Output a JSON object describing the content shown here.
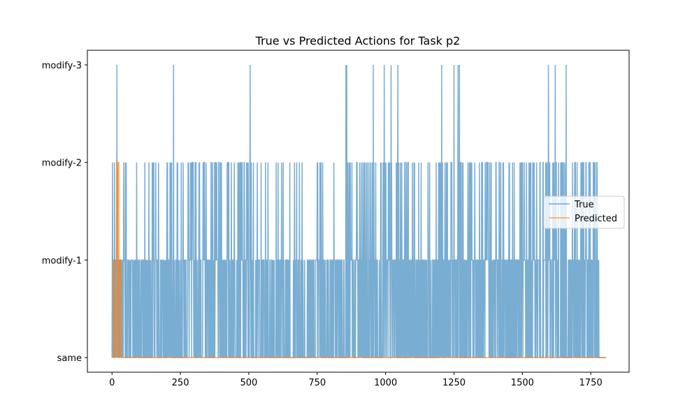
{
  "chart_data": {
    "type": "line",
    "title": "True vs Predicted Actions for Task p2",
    "xlabel": "",
    "ylabel": "",
    "xlim": [
      -90,
      1890
    ],
    "ylim": [
      -0.15,
      3.15
    ],
    "x_ticks": [
      0,
      250,
      500,
      750,
      1000,
      1250,
      1500,
      1750
    ],
    "x_tick_labels": [
      "0",
      "250",
      "500",
      "750",
      "1000",
      "1250",
      "1500",
      "1750"
    ],
    "y_tick_values": [
      0,
      1,
      2,
      3
    ],
    "y_tick_labels": [
      "same",
      "modify-1",
      "modify-2",
      "modify-3"
    ],
    "legend": {
      "position": "center-right",
      "entries": [
        "True",
        "Predicted"
      ]
    },
    "grid": false,
    "n_points": 1806,
    "series": [
      {
        "name": "True",
        "color": "#1f77b4",
        "opacity": 0.6,
        "segments": [
          {
            "from": 0,
            "to": 40,
            "values": [
              0,
              1,
              2,
              0,
              1,
              1,
              0,
              1,
              0,
              2,
              1,
              0,
              1,
              1,
              0,
              1,
              0,
              1,
              3,
              0,
              1,
              1,
              0,
              1,
              0,
              1,
              0,
              1,
              1,
              0,
              1,
              0,
              1,
              1,
              0,
              1,
              0,
              1,
              0,
              1
            ]
          },
          {
            "from": 40,
            "to": 200,
            "pattern": "mostly 0/1 alternation with occasional 2",
            "level2_at": [
              90,
              120,
              135,
              150,
              160,
              170
            ]
          },
          {
            "from": 200,
            "to": 520,
            "pattern": "dense 0/1/2 switching",
            "level3_at": [
              225,
              505
            ]
          },
          {
            "from": 520,
            "to": 700,
            "pattern": "sparser 0/1 with some 2",
            "level2_at": [
              570,
              600,
              620,
              650,
              675,
              685,
              695,
              700
            ]
          },
          {
            "from": 700,
            "to": 840,
            "pattern": "mostly 0 with some 1 and 2",
            "level2_at": [
              750,
              760,
              770
            ]
          },
          {
            "from": 840,
            "to": 1180,
            "pattern": "dense 0/1/2 switching",
            "level3_at": [
              855,
              858,
              955,
              995,
              1020,
              1045
            ]
          },
          {
            "from": 1180,
            "to": 1480,
            "pattern": "dense 0/1/2 switching",
            "level3_at": [
              1205,
              1250,
              1265,
              1270
            ]
          },
          {
            "from": 1480,
            "to": 1780,
            "pattern": "dense 0/1/2 switching",
            "level3_at": [
              1595,
              1620,
              1660
            ]
          },
          {
            "from": 1780,
            "to": 1806,
            "values_const": 0
          }
        ]
      },
      {
        "name": "Predicted",
        "color": "#ff7f0e",
        "opacity": 0.7,
        "points": [
          [
            0,
            0
          ],
          [
            4,
            0
          ],
          [
            5,
            1
          ],
          [
            8,
            1
          ],
          [
            9,
            0
          ],
          [
            12,
            0
          ],
          [
            13,
            1
          ],
          [
            16,
            1
          ],
          [
            17,
            2
          ],
          [
            19,
            2
          ],
          [
            20,
            0
          ],
          [
            22,
            0
          ],
          [
            23,
            2
          ],
          [
            25,
            2
          ],
          [
            26,
            0
          ],
          [
            28,
            0
          ],
          [
            29,
            1
          ],
          [
            33,
            1
          ],
          [
            34,
            0
          ],
          [
            1806,
            0
          ]
        ]
      }
    ]
  }
}
